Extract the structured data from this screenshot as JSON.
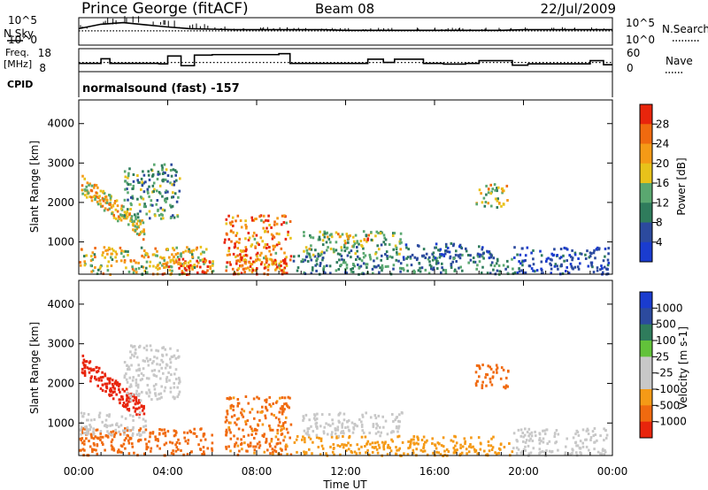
{
  "header": {
    "station": "Prince George (fitACF)",
    "beam": "Beam 08",
    "date": "22/Jul/2009"
  },
  "labels": {
    "nsky": "N.Sky",
    "nsearch": "N.Search",
    "freq": "Freq.",
    "freq_unit": "[MHz]",
    "nave": "Nave",
    "cpid": "CPID",
    "cpid_value": "normalsound (fast) -157"
  },
  "colors": {
    "power": [
      "#1a3ccf",
      "#2c4a9e",
      "#2f7c5c",
      "#5aa870",
      "#e8c21a",
      "#f59a16",
      "#f06a0f",
      "#e8250c"
    ],
    "velocity": [
      "#e8250c",
      "#f06a0f",
      "#f59a16",
      "#c8c8c8",
      "#c8c8c8",
      "#62c23a",
      "#2f7c5c",
      "#2c4a9e",
      "#1a3ccf"
    ]
  },
  "chart_data": [
    {
      "type": "line",
      "name": "nsky-nsearch",
      "yticks_left": [
        "10^5",
        "10^0"
      ],
      "yticks_right": [
        "10^5",
        "10^0"
      ],
      "x": [
        0,
        1,
        2,
        3,
        4,
        5,
        6,
        7,
        8,
        9,
        10,
        11,
        12,
        13,
        14,
        15,
        16,
        17,
        18,
        19,
        20,
        21,
        22,
        23,
        24
      ],
      "nsky": [
        3.0,
        3.8,
        4.1,
        3.7,
        3.3,
        3.0,
        2.9,
        2.8,
        2.8,
        2.8,
        2.8,
        2.8,
        2.7,
        2.7,
        2.7,
        2.7,
        2.7,
        2.7,
        2.7,
        2.7,
        2.8,
        2.8,
        2.8,
        2.8,
        2.8
      ],
      "nsearch": [
        2.6,
        2.6,
        2.6,
        2.6,
        2.6,
        2.6,
        2.6,
        2.6,
        2.6,
        2.6,
        2.6,
        2.6,
        2.6,
        2.6,
        2.6,
        2.6,
        2.6,
        2.6,
        2.6,
        2.6,
        2.6,
        2.6,
        2.6,
        2.6,
        2.6
      ]
    },
    {
      "type": "line",
      "name": "freq-nave",
      "yticks_left": [
        "18",
        "8"
      ],
      "yticks_right": [
        "60",
        "0"
      ],
      "freq_steps": [
        [
          0.0,
          11.6
        ],
        [
          1.0,
          13.6
        ],
        [
          1.4,
          11.6
        ],
        [
          3.6,
          11.4
        ],
        [
          4.0,
          14.8
        ],
        [
          4.6,
          10.6
        ],
        [
          5.2,
          15.2
        ],
        [
          6.0,
          15.4
        ],
        [
          6.6,
          15.4
        ],
        [
          9.0,
          15.8
        ],
        [
          9.5,
          11.6
        ],
        [
          13.0,
          13.4
        ],
        [
          13.7,
          12.0
        ],
        [
          14.2,
          13.4
        ],
        [
          15.5,
          11.6
        ],
        [
          16.4,
          11.3
        ],
        [
          17.4,
          11.6
        ],
        [
          18.0,
          12.8
        ],
        [
          19.5,
          10.8
        ],
        [
          20.2,
          11.4
        ],
        [
          21.8,
          11.4
        ],
        [
          23.0,
          12.8
        ],
        [
          23.6,
          11.0
        ],
        [
          24.0,
          11.0
        ]
      ],
      "nave_level": 12.0
    },
    {
      "type": "heatmap",
      "name": "power",
      "ylabel": "Slant Range [km]",
      "colorbar_label": "Power [dB]",
      "colorbar_ticks": [
        "28",
        "24",
        "20",
        "16",
        "12",
        "8",
        "4"
      ],
      "yticks": [
        "1000",
        "2000",
        "3000",
        "4000"
      ],
      "ylim": [
        180,
        4600
      ],
      "xlim": [
        0,
        24
      ],
      "regions": [
        {
          "t0": 0.1,
          "t1": 2.9,
          "r0": 1300,
          "r1": 2500,
          "value": 20,
          "band": "tilt"
        },
        {
          "t0": 0.0,
          "t1": 6.0,
          "r0": 200,
          "r1": 900,
          "value": 18
        },
        {
          "t0": 3.4,
          "t1": 6.0,
          "r0": 200,
          "r1": 650,
          "value": 27
        },
        {
          "t0": 6.5,
          "t1": 9.5,
          "r0": 200,
          "r1": 1700,
          "value": 24
        },
        {
          "t0": 7.0,
          "t1": 9.5,
          "r0": 200,
          "r1": 600,
          "value": 28
        },
        {
          "t0": 9.6,
          "t1": 19.5,
          "r0": 200,
          "r1": 700,
          "value": 10
        },
        {
          "t0": 10.0,
          "t1": 14.5,
          "r0": 700,
          "r1": 1300,
          "value": 14
        },
        {
          "t0": 11.5,
          "t1": 13.2,
          "r0": 1000,
          "r1": 1250,
          "value": 22
        },
        {
          "t0": 2.0,
          "t1": 4.5,
          "r0": 1600,
          "r1": 3000,
          "value": 12
        },
        {
          "t0": 17.8,
          "t1": 19.3,
          "r0": 1900,
          "r1": 2500,
          "value": 18
        },
        {
          "t0": 14.5,
          "t1": 18.5,
          "r0": 600,
          "r1": 1000,
          "value": 6
        },
        {
          "t0": 19.5,
          "t1": 23.8,
          "r0": 200,
          "r1": 900,
          "value": 5
        }
      ]
    },
    {
      "type": "heatmap",
      "name": "velocity",
      "ylabel": "Slant Range [km]",
      "colorbar_label": "Velocity [m s-1]",
      "colorbar_ticks": [
        "1000",
        "500",
        "100",
        "25",
        "-25",
        "-100",
        "-500",
        "-1000"
      ],
      "yticks": [
        "1000",
        "2000",
        "3000",
        "4000"
      ],
      "ylim": [
        180,
        4600
      ],
      "xlim": [
        0,
        24
      ],
      "xticks": [
        "00:00",
        "04:00",
        "08:00",
        "12:00",
        "16:00",
        "20:00",
        "00:00"
      ],
      "xlabel": "Time UT",
      "regions": [
        {
          "t0": 0.1,
          "t1": 2.9,
          "r0": 1300,
          "r1": 2500,
          "value": -700,
          "band": "tilt"
        },
        {
          "t0": 0.0,
          "t1": 6.0,
          "r0": 200,
          "r1": 900,
          "value": -150
        },
        {
          "t0": 0.0,
          "t1": 3.0,
          "r0": 700,
          "r1": 1300,
          "value": 0
        },
        {
          "t0": 6.5,
          "t1": 9.5,
          "r0": 200,
          "r1": 1700,
          "value": -120
        },
        {
          "t0": 9.6,
          "t1": 19.5,
          "r0": 200,
          "r1": 700,
          "value": -60
        },
        {
          "t0": 10.0,
          "t1": 14.5,
          "r0": 700,
          "r1": 1300,
          "value": 0
        },
        {
          "t0": 2.0,
          "t1": 4.5,
          "r0": 1600,
          "r1": 3000,
          "value": 0
        },
        {
          "t0": 17.8,
          "t1": 19.3,
          "r0": 1900,
          "r1": 2500,
          "value": -300
        },
        {
          "t0": 19.5,
          "t1": 23.8,
          "r0": 200,
          "r1": 900,
          "value": 0
        }
      ]
    }
  ]
}
